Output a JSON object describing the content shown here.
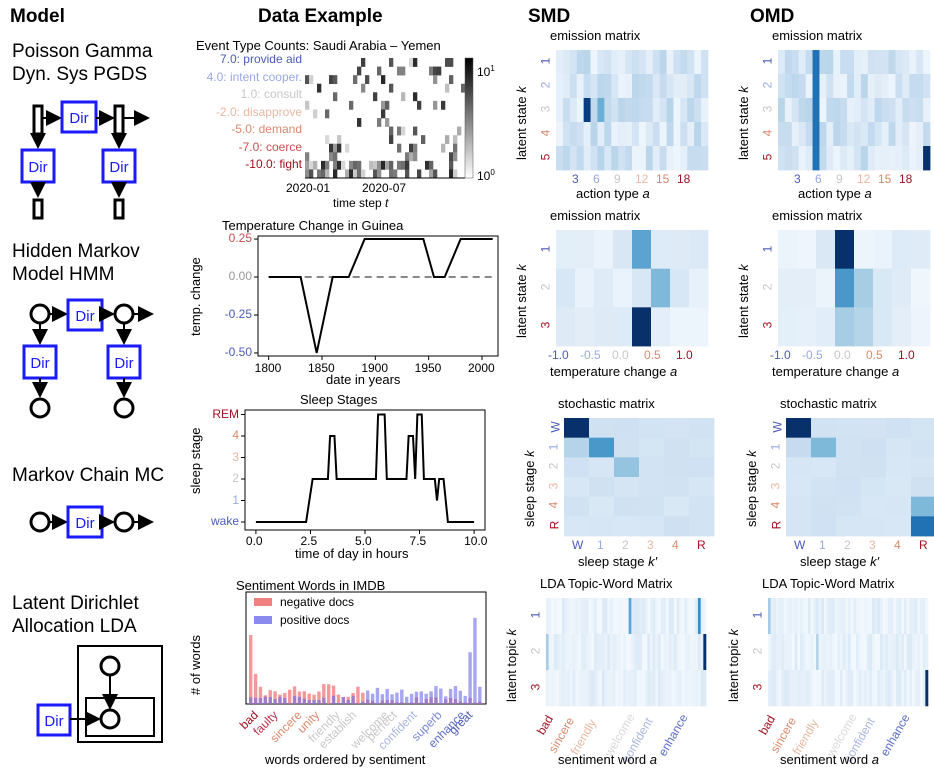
{
  "headers": {
    "model": "Model",
    "data": "Data Example",
    "smd": "SMD",
    "omd": "OMD"
  },
  "models": [
    {
      "line1": "Poisson Gamma",
      "line2": "Dyn. Sys PGDS"
    },
    {
      "line1": "Hidden Markov",
      "line2": "Model HMM"
    },
    {
      "line1": "Markov Chain MC",
      "line2": ""
    },
    {
      "line1": "Latent Dirichlet",
      "line2": "Allocation LDA"
    }
  ],
  "node_label": "Dir",
  "colors": {
    "node_blue": "#1a1aff",
    "red": "#b2182b",
    "blue": "#4a5ab8",
    "heat_dark": "#08306b"
  },
  "pgds_chart": {
    "title": "Event Type Counts: Saudi Arabia – Yemen",
    "labels": [
      "7.0: provide aid",
      "4.0: intent cooper.",
      "1.0: consult",
      "-2.0: disapprove",
      "-5.0: demand",
      "-7.0: coerce",
      "-10.0: fight"
    ],
    "label_colors": [
      "#4a5ab8",
      "#99a8e0",
      "#c7c7c7",
      "#e8b8a0",
      "#d9886c",
      "#c64f4f",
      "#a01020"
    ],
    "xticks": [
      "2020-01",
      "2020-07"
    ],
    "xlabel": "time step t",
    "cbar_top": "10^1",
    "cbar_bottom": "10^0"
  },
  "temp_chart": {
    "type": "line",
    "title": "Temperature Change in Guinea",
    "ylabel": "temp. change",
    "xlabel": "date in years",
    "xlim": [
      1790,
      2015
    ],
    "ylim": [
      -0.52,
      0.27
    ],
    "xticks": [
      "1800",
      "1850",
      "1900",
      "1950",
      "2000"
    ],
    "yticks": [
      "0.25",
      "0.00",
      "-0.25",
      "-0.50"
    ],
    "x": [
      1800,
      1830,
      1845,
      1860,
      1875,
      1890,
      1945,
      1955,
      1965,
      1980,
      2010
    ],
    "y": [
      0,
      0,
      -0.5,
      0,
      0,
      0.25,
      0.25,
      0,
      0,
      0.25,
      0.25
    ]
  },
  "sleep_chart": {
    "type": "line",
    "title": "Sleep Stages",
    "ylabel": "sleep stage",
    "xlabel": "time of day in hours",
    "yticks": [
      "wake",
      "1",
      "2",
      "3",
      "4",
      "REM"
    ],
    "ytick_colors": [
      "#4a5ab8",
      "#99a8e0",
      "#c7c7c7",
      "#e8b8a0",
      "#d9886c",
      "#a01020"
    ],
    "xticks": [
      "0.0",
      "2.5",
      "5.0",
      "7.5",
      "10.0"
    ]
  },
  "sentiment_chart": {
    "type": "bar",
    "title": "Sentiment Words in IMDB",
    "ylabel": "# of words",
    "xlabel": "words ordered by sentiment",
    "legend": [
      "negative docs",
      "positive docs"
    ],
    "xticks": [
      "bad",
      "faulty",
      "sincere",
      "unity",
      "friendly",
      "establish",
      "welcome",
      "perfect",
      "confident",
      "superb",
      "enhance",
      "great"
    ],
    "xtick_colors": [
      "#a01020",
      "#b8304a",
      "#d9886c",
      "#d9886c",
      "#c7c7c7",
      "#c7c7c7",
      "#c7c7c7",
      "#c7c7c7",
      "#aab4e0",
      "#7a8ad0",
      "#5a6ac4",
      "#4a5ab8"
    ]
  },
  "smd": {
    "pgds": {
      "title": "emission matrix",
      "ylabel": "latent state k",
      "xlabel": "action type a",
      "yticks": [
        "1",
        "2",
        "3",
        "4",
        "5"
      ],
      "xticks": [
        "3",
        "6",
        "9",
        "12",
        "15",
        "18"
      ]
    },
    "hmm": {
      "title": "emission matrix",
      "ylabel": "latent state k",
      "xlabel": "temperature change a",
      "yticks": [
        "1",
        "2",
        "3"
      ],
      "xticks": [
        "-1.0",
        "-0.5",
        "0.0",
        "0.5",
        "1.0"
      ]
    },
    "mc": {
      "title": "stochastic matrix",
      "ylabel": "sleep stage k",
      "xlabel": "sleep stage k′",
      "yticks": [
        "W",
        "1",
        "2",
        "3",
        "4",
        "R"
      ],
      "xticks": [
        "W",
        "1",
        "2",
        "3",
        "4",
        "R"
      ]
    },
    "lda": {
      "title": "LDA Topic-Word Matrix",
      "ylabel": "latent topic k",
      "xlabel": "sentiment word a",
      "yticks": [
        "1",
        "2",
        "3"
      ],
      "xticks": [
        "bad",
        "sincere",
        "friendly",
        "welcome",
        "confident",
        "enhance"
      ]
    }
  },
  "omd": {
    "pgds": {
      "title": "emission matrix",
      "ylabel": "latent state k",
      "xlabel": "action type a",
      "yticks": [
        "1",
        "2",
        "3",
        "4",
        "5"
      ],
      "xticks": [
        "3",
        "6",
        "9",
        "12",
        "15",
        "18"
      ]
    },
    "hmm": {
      "title": "emission matrix",
      "ylabel": "latent state k",
      "xlabel": "temperature change a",
      "yticks": [
        "1",
        "2",
        "3"
      ],
      "xticks": [
        "-1.0",
        "-0.5",
        "0.0",
        "0.5",
        "1.0"
      ]
    },
    "mc": {
      "title": "stochastic matrix",
      "ylabel": "sleep stage k",
      "xlabel": "sleep stage k′",
      "yticks": [
        "W",
        "1",
        "2",
        "3",
        "4",
        "R"
      ],
      "xticks": [
        "W",
        "1",
        "2",
        "3",
        "4",
        "R"
      ]
    },
    "lda": {
      "title": "LDA Topic-Word Matrix",
      "ylabel": "latent topic k",
      "xlabel": "sentiment word a",
      "yticks": [
        "1",
        "2",
        "3"
      ],
      "xticks": [
        "bad",
        "sincere",
        "friendly",
        "welcome",
        "confident",
        "enhance"
      ]
    }
  }
}
